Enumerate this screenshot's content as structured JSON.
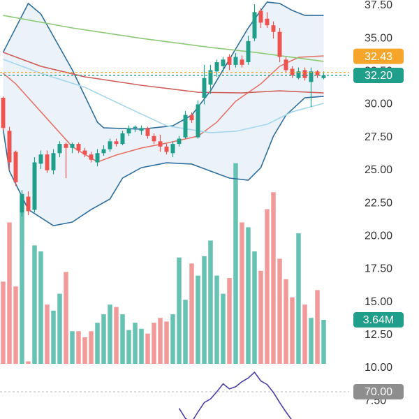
{
  "chart_data": [
    {
      "type": "candlestick",
      "xlim": [
        -0.5,
        51.5
      ],
      "ylim": [
        6.13,
        37.92
      ],
      "yticks": [
        {
          "value": 7.5,
          "label": "7.50"
        },
        {
          "value": 10,
          "label": "10.00"
        },
        {
          "value": 12.5,
          "label": "12.50"
        },
        {
          "value": 15,
          "label": "15.00"
        },
        {
          "value": 17.5,
          "label": "17.50"
        },
        {
          "value": 20,
          "label": "20.00"
        },
        {
          "value": 22.5,
          "label": "22.50"
        },
        {
          "value": 25,
          "label": "25.00"
        },
        {
          "value": 27.5,
          "label": "27.50"
        },
        {
          "value": 30,
          "label": "30.00"
        },
        {
          "value": 32.5,
          "label": "32.50"
        },
        {
          "value": 35,
          "label": "35.00"
        },
        {
          "value": 37.5,
          "label": "37.50"
        }
      ],
      "up_color": "#1f9e89",
      "down_color": "#ef5350",
      "open": [
        30.5,
        28.0,
        26.4,
        21.8,
        23.0,
        22.0,
        25.5,
        26.2,
        25.0,
        26.3,
        27.0,
        26.7,
        27.0,
        26.5,
        26.2,
        25.6,
        26.3,
        26.6,
        27.2,
        27.0,
        27.8,
        28.2,
        28.0,
        28.2,
        27.6,
        27.2,
        26.8,
        26.3,
        27.0,
        27.5,
        29.2,
        27.5,
        30.5,
        31.5,
        32.5,
        32.9,
        33.6,
        33.0,
        33.4,
        33.2,
        35.0,
        37.1,
        36.5,
        36.0,
        35.5,
        33.4,
        32.7,
        32.0,
        32.6,
        31.7,
        32.5,
        32.0
      ],
      "high": [
        30.6,
        28.3,
        26.5,
        23.5,
        23.4,
        26.0,
        26.5,
        26.5,
        26.6,
        27.2,
        27.1,
        27.1,
        27.1,
        26.7,
        26.4,
        26.6,
        26.9,
        27.4,
        27.4,
        28.0,
        28.4,
        28.4,
        28.4,
        28.3,
        27.8,
        27.7,
        27.0,
        27.2,
        27.6,
        29.5,
        29.4,
        30.3,
        33.0,
        33.0,
        33.4,
        33.6,
        33.8,
        33.9,
        33.7,
        35.2,
        37.6,
        37.3,
        37.0,
        36.3,
        35.8,
        33.6,
        32.9,
        32.8,
        32.8,
        32.8,
        32.6,
        32.5
      ],
      "low": [
        28.0,
        25.0,
        23.8,
        21.5,
        21.6,
        21.8,
        25.1,
        24.8,
        24.7,
        26.0,
        24.4,
        26.3,
        26.3,
        26.0,
        25.6,
        25.3,
        26.1,
        26.4,
        26.8,
        26.9,
        27.6,
        27.9,
        27.7,
        27.4,
        27.0,
        26.4,
        26.2,
        26.0,
        26.8,
        27.4,
        28.6,
        27.4,
        30.0,
        30.8,
        32.1,
        32.5,
        32.6,
        32.8,
        32.8,
        33.0,
        34.8,
        35.8,
        35.8,
        35.0,
        33.2,
        32.4,
        32.0,
        31.9,
        31.8,
        29.8,
        32.0,
        31.9
      ],
      "close": [
        28.2,
        25.6,
        24.1,
        23.2,
        21.9,
        25.6,
        26.2,
        25.0,
        26.3,
        27.0,
        26.7,
        27.0,
        26.5,
        26.2,
        25.8,
        26.3,
        26.6,
        27.2,
        27.0,
        27.8,
        28.2,
        28.3,
        28.2,
        27.6,
        27.2,
        26.8,
        26.4,
        27.0,
        27.4,
        29.2,
        28.8,
        30.0,
        32.0,
        32.6,
        33.2,
        33.4,
        33.0,
        33.6,
        33.0,
        34.8,
        37.0,
        36.2,
        36.0,
        35.5,
        33.6,
        32.6,
        32.2,
        32.5,
        32.0,
        32.5,
        32.2,
        32.2
      ],
      "band_fill": "#dde9f5",
      "band_series": [
        0,
        1
      ],
      "series": [
        {
          "color": "#2f6f9f",
          "x": [
            0,
            4,
            6,
            11,
            15,
            16,
            22,
            27,
            30,
            33,
            35,
            37,
            39,
            41,
            42,
            44,
            46,
            48,
            51
          ],
          "values": [
            33.95,
            37.66,
            36.86,
            32.62,
            28.65,
            28.22,
            28.12,
            28.38,
            29.18,
            31.03,
            32.62,
            34.21,
            35.8,
            37.13,
            37.76,
            37.66,
            37.13,
            36.75,
            36.75
          ]
        },
        {
          "color": "#2f6f9f",
          "x": [
            0,
            1,
            4,
            8,
            11,
            14,
            17,
            19,
            22,
            26,
            30,
            33,
            36,
            39,
            41,
            43,
            45,
            48,
            51
          ],
          "values": [
            28.12,
            24.94,
            22.02,
            20.8,
            21.07,
            22.02,
            22.82,
            24.41,
            25.2,
            25.57,
            25.47,
            24.94,
            24.41,
            24.25,
            25.2,
            27.59,
            29.18,
            30.5,
            30.61
          ]
        },
        {
          "color": "#e57368",
          "x": [
            0,
            2,
            6,
            11,
            15,
            18,
            22,
            26,
            31,
            34,
            37,
            41,
            44,
            47,
            51
          ],
          "values": [
            32.36,
            31.56,
            29.44,
            26.79,
            25.63,
            26.16,
            26.69,
            27.06,
            27.59,
            28.65,
            30.24,
            31.56,
            32.89,
            33.57,
            33.68
          ]
        },
        {
          "color": "#8cc977",
          "x": [
            0,
            11,
            22,
            33,
            40,
            51
          ],
          "values": [
            36.75,
            35.8,
            35.01,
            34.32,
            33.95,
            33.26
          ]
        },
        {
          "color": "#d0605a",
          "x": [
            0,
            6,
            13,
            22,
            31,
            38,
            44,
            51
          ],
          "values": [
            33.95,
            32.89,
            32.09,
            31.45,
            30.92,
            30.87,
            31.03,
            30.87
          ]
        },
        {
          "color": "#a5d6ec",
          "x": [
            0,
            6,
            13,
            20,
            26,
            33,
            37,
            42,
            46,
            51
          ],
          "values": [
            33.42,
            32.36,
            31.3,
            29.71,
            28.38,
            27.85,
            27.96,
            28.49,
            29.44,
            30.08
          ]
        }
      ],
      "price_lines": [
        {
          "value": 32.43,
          "label": "32.43",
          "color": "#f4a52a"
        },
        {
          "value": 32.2,
          "label": "32.20",
          "color": "#1f9e89"
        }
      ]
    },
    {
      "type": "bar",
      "ylim": [
        0,
        30.1
      ],
      "up_color": "#66c2b3",
      "down_color": "#f29a9a",
      "values": [
        6.8,
        11.7,
        6.4,
        13.9,
        0.2,
        9.8,
        9.3,
        4.9,
        4.4,
        5.8,
        7.6,
        2.7,
        2.7,
        2.2,
        2.7,
        3.4,
        4.1,
        4.9,
        4.7,
        4.1,
        2.8,
        3.4,
        2.9,
        2.5,
        3.4,
        3.8,
        3.5,
        4.1,
        8.8,
        5.3,
        8.3,
        7.3,
        8.9,
        10.2,
        7.3,
        5.8,
        7.1,
        16.6,
        11.7,
        11.3,
        9.3,
        7.7,
        12.8,
        14.2,
        8.7,
        7.0,
        5.5,
        10.8,
        4.9,
        3.8,
        6.1,
        3.64
      ],
      "badge": {
        "value": 3.64,
        "label": "3.64M",
        "color": "#1f9e89"
      }
    },
    {
      "type": "line",
      "ylim": [
        32.2,
        100
      ],
      "color": "#4b3fa8",
      "x": [
        28,
        29,
        30,
        31,
        32,
        33,
        34,
        35,
        36,
        37,
        38,
        39,
        40,
        41,
        42,
        43,
        44,
        45,
        46
      ],
      "values": [
        47,
        33,
        28,
        42,
        55,
        60,
        70,
        81,
        74,
        77,
        84,
        89,
        97,
        85,
        80,
        69,
        55,
        42,
        30
      ],
      "level": {
        "value": 70,
        "label": "70.00",
        "color": "#8e8e8e"
      }
    }
  ]
}
